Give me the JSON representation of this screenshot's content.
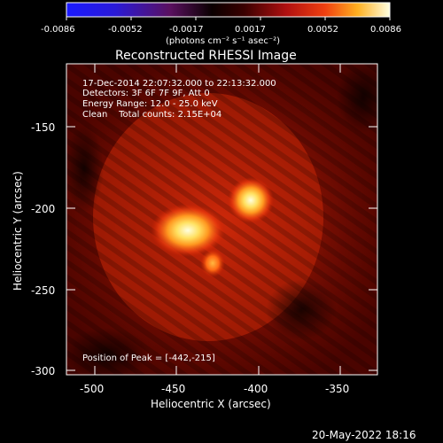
{
  "colorbar": {
    "tick_labels": [
      "-0.0086",
      "-0.0052",
      "-0.0017",
      "0.0017",
      "0.0052",
      "0.0086"
    ],
    "unit_label": "(photons cm⁻² s⁻¹ asec⁻²)"
  },
  "plot": {
    "title": "Reconstructed RHESSI Image",
    "xlabel": "Heliocentric X (arcsec)",
    "ylabel": "Heliocentric Y (arcsec)",
    "x_ticks": [
      "-500",
      "-450",
      "-400",
      "-350"
    ],
    "y_ticks": [
      "-150",
      "-200",
      "-250",
      "-300"
    ]
  },
  "annotations": {
    "time_range": "17-Dec-2014 22:07:32.000 to 22:13:32.000",
    "detectors": "Detectors: 3F 6F 7F 9F, Att 0",
    "energy": "Energy Range: 12.0 - 25.0 keV",
    "clean": "Clean    Total counts: 2.15E+04",
    "peak": "Position of Peak = [-442,-215]"
  },
  "footer": {
    "timestamp": "20-May-2022 18:16"
  },
  "colors": {
    "background": "#000000",
    "frame": "#ffffff"
  }
}
